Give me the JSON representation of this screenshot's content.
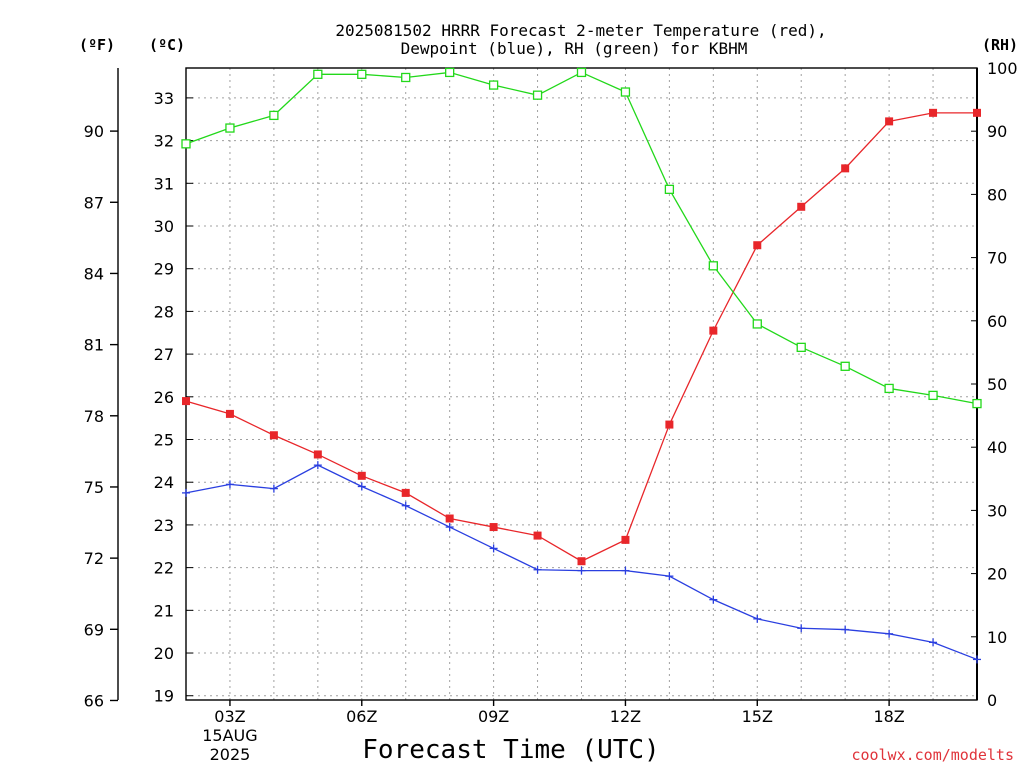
{
  "title_line1": "2025081502 HRRR Forecast 2-meter Temperature (red),",
  "title_line2": "Dewpoint (blue), RH (green) for KBHM",
  "unit_f": "(ºF)",
  "unit_c": "(ºC)",
  "unit_rh": "(RH)",
  "xlabel": "Forecast Time (UTC)",
  "credit": "coolwx.com/modelts",
  "colors": {
    "temperature": "#e8262a",
    "dewpoint": "#2a3fe0",
    "rh": "#22d81a",
    "grid": "#a0a0a0",
    "credit": "#e0333a"
  },
  "chart_data": {
    "type": "line",
    "x_hours": [
      2,
      3,
      4,
      5,
      6,
      7,
      8,
      9,
      10,
      11,
      12,
      13,
      14,
      15,
      16,
      17,
      18,
      19,
      20
    ],
    "x_ticks": [
      {
        "hour": 3,
        "label": "03Z",
        "sub": [
          "15AUG",
          "2025"
        ]
      },
      {
        "hour": 6,
        "label": "06Z"
      },
      {
        "hour": 9,
        "label": "09Z"
      },
      {
        "hour": 12,
        "label": "12Z"
      },
      {
        "hour": 15,
        "label": "15Z"
      },
      {
        "hour": 18,
        "label": "18Z"
      }
    ],
    "xlim": [
      2,
      20
    ],
    "ylim_c": [
      18.9,
      33.7
    ],
    "yticks_c": [
      19,
      20,
      21,
      22,
      23,
      24,
      25,
      26,
      27,
      28,
      29,
      30,
      31,
      32,
      33
    ],
    "yticks_f": [
      66,
      69,
      72,
      75,
      78,
      81,
      84,
      87,
      90
    ],
    "ylim_rh": [
      0,
      100
    ],
    "yticks_rh": [
      0,
      10,
      20,
      30,
      40,
      50,
      60,
      70,
      80,
      90,
      100
    ],
    "grid": true,
    "series": [
      {
        "name": "Temperature",
        "axis": "c",
        "marker": "filled-square",
        "values": [
          25.9,
          25.6,
          25.1,
          24.65,
          24.15,
          23.75,
          23.15,
          22.95,
          22.75,
          22.15,
          22.65,
          25.35,
          27.55,
          29.55,
          30.45,
          31.35,
          32.45,
          32.65,
          32.65
        ]
      },
      {
        "name": "Dewpoint",
        "axis": "c",
        "marker": "plus",
        "values": [
          23.75,
          23.95,
          23.85,
          24.4,
          23.9,
          23.45,
          22.95,
          22.45,
          21.95,
          21.93,
          21.93,
          21.8,
          21.25,
          20.8,
          20.58,
          20.55,
          20.45,
          20.25,
          19.85
        ]
      },
      {
        "name": "RH",
        "axis": "rh",
        "marker": "open-square",
        "values": [
          88,
          90.5,
          92.5,
          99,
          99,
          98.5,
          99.3,
          97.3,
          95.7,
          99.3,
          96.2,
          80.8,
          68.7,
          59.5,
          55.8,
          52.8,
          49.3,
          48.2,
          46.9
        ]
      }
    ]
  }
}
